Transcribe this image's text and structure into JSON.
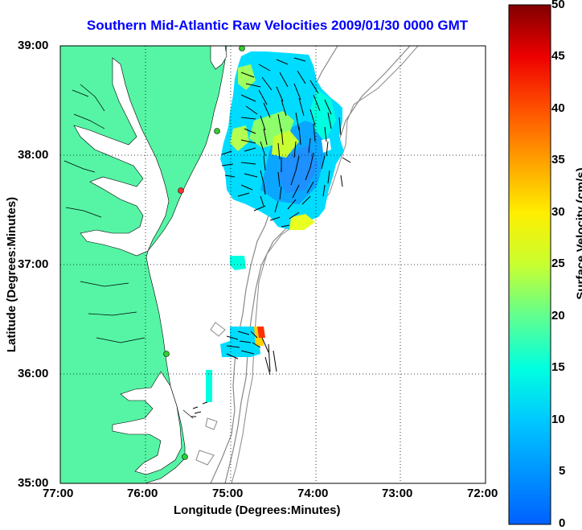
{
  "title": "Southern Mid-Atlantic Raw Velocities 2009/01/30 0000 GMT",
  "x_axis": {
    "label": "Longitude (Degrees:Minutes)",
    "ticks": [
      "77:00",
      "76:00",
      "75:00",
      "74:00",
      "73:00",
      "72:00"
    ]
  },
  "y_axis": {
    "label": "Latitude (Degrees:Minutes)",
    "ticks": [
      "39:00",
      "38:00",
      "37:00",
      "36:00",
      "35:00"
    ]
  },
  "colorbar": {
    "label": "Surface Velocity (cm/s)",
    "ticks": [
      "50",
      "45",
      "40",
      "35",
      "30",
      "25",
      "20",
      "15",
      "10",
      "5",
      "0"
    ],
    "min": 0,
    "max": 50
  },
  "colors": {
    "land": "#55f5a5",
    "title": "#0000ff",
    "station_active": "#33cc33",
    "station_inactive": "#ff3333"
  }
}
